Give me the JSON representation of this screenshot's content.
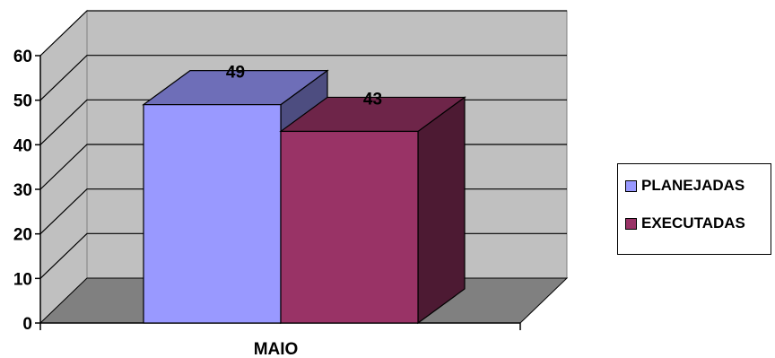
{
  "chart_data": {
    "type": "bar",
    "categories": [
      "MAIO"
    ],
    "series": [
      {
        "name": "PLANEJADAS",
        "values": [
          49
        ],
        "color": "#9999ff"
      },
      {
        "name": "EXECUTADAS",
        "values": [
          43
        ],
        "color": "#993366"
      }
    ],
    "title": "",
    "xlabel": "",
    "ylabel": "",
    "ylim": [
      0,
      60
    ],
    "yticks": [
      0,
      10,
      20,
      30,
      40,
      50,
      60
    ],
    "grid": true,
    "legend_position": "right",
    "style": "3d"
  }
}
